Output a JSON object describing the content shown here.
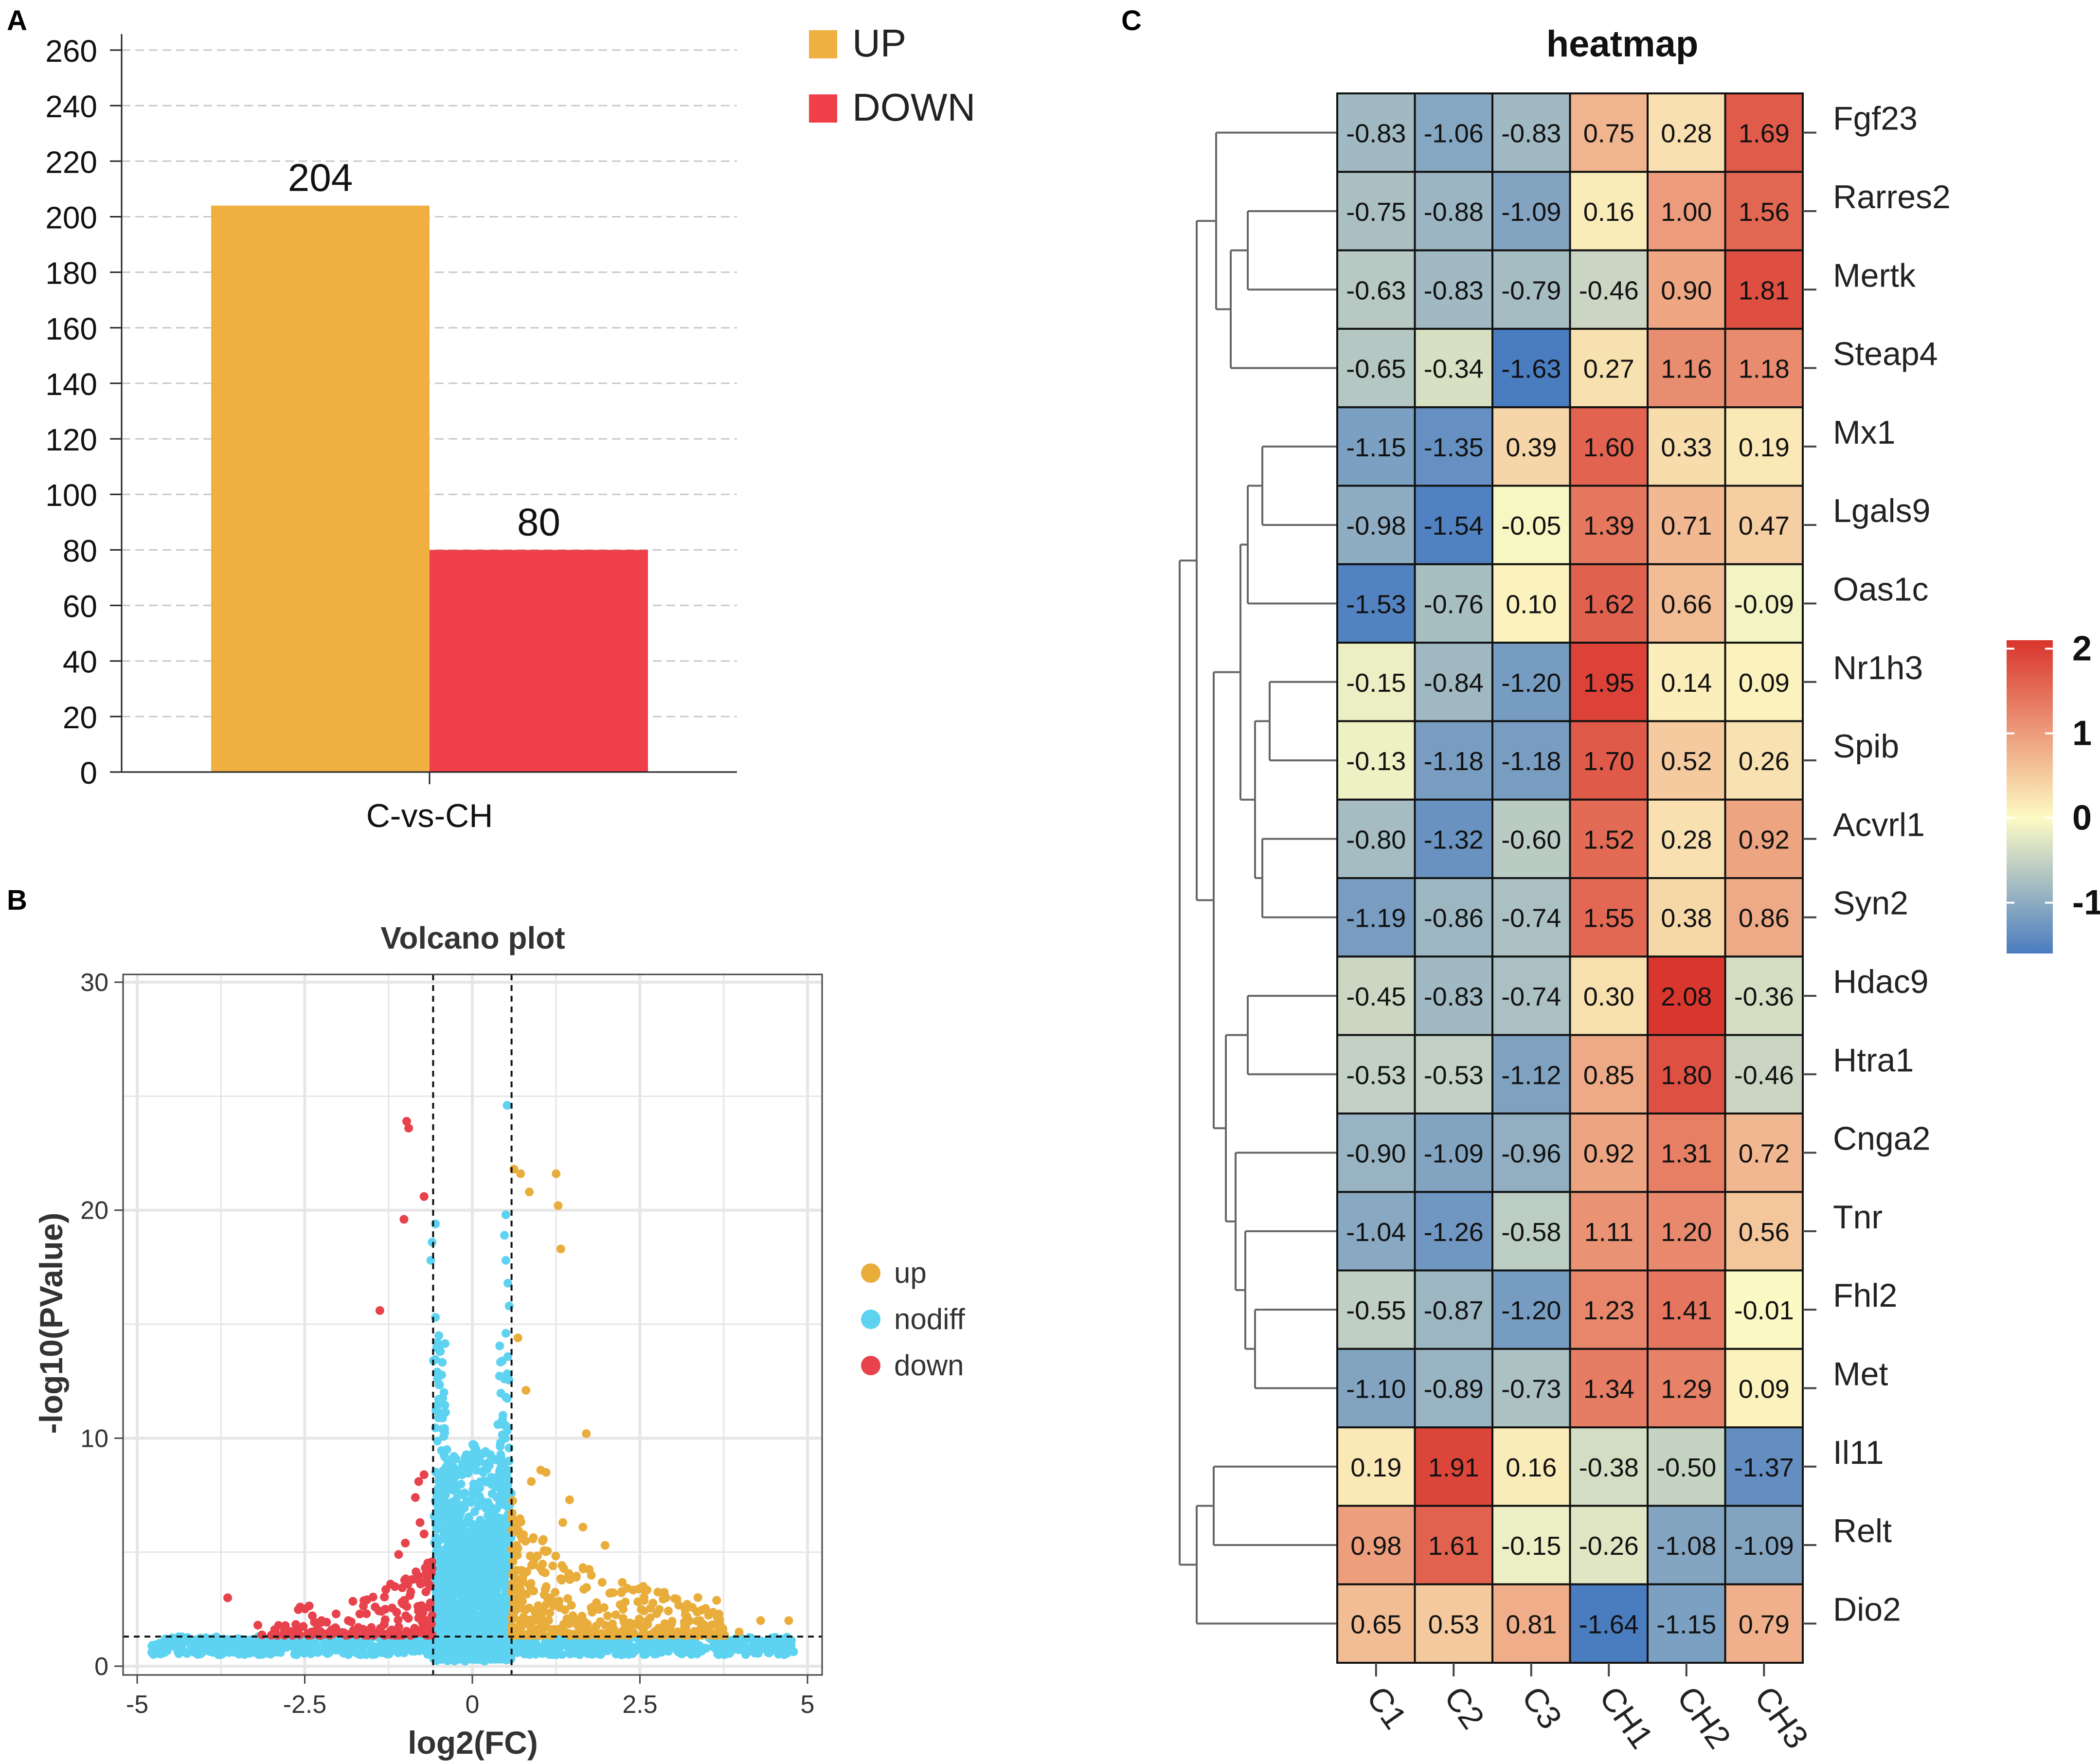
{
  "panel_labels": {
    "a": "A",
    "b": "B",
    "c": "C"
  },
  "chart_data": [
    {
      "type": "bar",
      "title": "",
      "categories": [
        "C-vs-CH"
      ],
      "series": [
        {
          "name": "UP",
          "values": [
            204
          ],
          "color": "#efb041"
        },
        {
          "name": "DOWN",
          "values": [
            80
          ],
          "color": "#ef3f49"
        }
      ],
      "value_labels": [
        "204",
        "80"
      ],
      "ylim": [
        0,
        260
      ],
      "yticks": [
        "0",
        "20",
        "40",
        "60",
        "80",
        "100",
        "120",
        "140",
        "160",
        "180",
        "200",
        "220",
        "240",
        "260"
      ],
      "xlabel": "",
      "ylabel": "",
      "grid": "horizontal dashed",
      "legend_position": "top-right"
    },
    {
      "type": "scatter",
      "title": "Volcano plot",
      "xlabel": "log2(FC)",
      "ylabel": "-log10(PValue)",
      "xlim": [
        -5,
        5
      ],
      "ylim": [
        0,
        30
      ],
      "xticks": [
        "-5",
        "-2.5",
        "0",
        "2.5",
        "5"
      ],
      "yticks": [
        "0",
        "10",
        "20",
        "30"
      ],
      "thresholds": {
        "log2fc": [
          -0.585,
          0.585
        ],
        "neglog10p": 1.3
      },
      "legend_position": "right",
      "legend": [
        {
          "name": "up",
          "color": "#e9ad3c"
        },
        {
          "name": "nodiff",
          "color": "#5ed3f1"
        },
        {
          "name": "down",
          "color": "#e8424c"
        }
      ],
      "highlight_points": {
        "up": [
          [
            0.62,
            21.8
          ],
          [
            0.72,
            21.6
          ],
          [
            0.85,
            20.8
          ],
          [
            1.25,
            21.6
          ],
          [
            1.28,
            20.2
          ],
          [
            1.32,
            18.3
          ],
          [
            0.68,
            14.4
          ],
          [
            0.8,
            12.1
          ],
          [
            1.02,
            8.6
          ],
          [
            0.88,
            8.1
          ],
          [
            1.1,
            8.5
          ],
          [
            1.7,
            10.2
          ],
          [
            1.45,
            7.3
          ],
          [
            1.35,
            6.3
          ],
          [
            1.65,
            6.1
          ],
          [
            1.98,
            5.3
          ],
          [
            2.55,
            3.5
          ],
          [
            2.25,
            2.5
          ],
          [
            2.75,
            2.3
          ],
          [
            3.4,
            2.0
          ],
          [
            3.7,
            1.8
          ],
          [
            4.3,
            2.0
          ],
          [
            4.72,
            2.0
          ],
          [
            3.98,
            1.5
          ],
          [
            1.2,
            4.4
          ],
          [
            1.55,
            3.9
          ],
          [
            2.05,
            3.2
          ],
          [
            2.35,
            1.9
          ],
          [
            2.9,
            1.6
          ],
          [
            3.15,
            1.5
          ],
          [
            1.8,
            2.6
          ]
        ],
        "down": [
          [
            -0.98,
            23.9
          ],
          [
            -0.95,
            23.6
          ],
          [
            -0.72,
            20.6
          ],
          [
            -1.02,
            19.6
          ],
          [
            -1.38,
            15.6
          ],
          [
            -0.72,
            8.4
          ],
          [
            -0.8,
            8.1
          ],
          [
            -0.85,
            7.4
          ],
          [
            -0.78,
            6.3
          ],
          [
            -1.0,
            5.4
          ],
          [
            -0.72,
            5.8
          ],
          [
            -1.1,
            4.9
          ],
          [
            -1.22,
            3.6
          ],
          [
            -1.45,
            2.6
          ],
          [
            -1.58,
            2.3
          ],
          [
            -1.85,
            2.0
          ],
          [
            -2.1,
            1.6
          ],
          [
            -3.65,
            3.0
          ],
          [
            -2.95,
            1.6
          ],
          [
            -3.2,
            1.8
          ],
          [
            -2.6,
            1.6
          ],
          [
            -2.25,
            2.0
          ],
          [
            -0.9,
            3.8
          ],
          [
            -1.05,
            2.8
          ],
          [
            -1.3,
            2.5
          ],
          [
            -1.7,
            1.7
          ],
          [
            -2.4,
            1.5
          ],
          [
            -2.8,
            1.5
          ]
        ],
        "nodiff": [
          [
            0.52,
            24.6
          ],
          [
            -0.55,
            19.4
          ],
          [
            -0.6,
            18.6
          ],
          [
            -0.62,
            17.8
          ],
          [
            0.5,
            19.8
          ],
          [
            0.48,
            18.9
          ],
          [
            0.5,
            17.8
          ],
          [
            0.53,
            16.8
          ],
          [
            0.55,
            15.8
          ],
          [
            0.5,
            14.6
          ],
          [
            -0.55,
            15.3
          ],
          [
            -0.5,
            14.5
          ],
          [
            -0.58,
            13.4
          ],
          [
            -0.52,
            12.6
          ],
          [
            -0.48,
            11.6
          ],
          [
            0.48,
            12.6
          ],
          [
            0.5,
            11.8
          ],
          [
            0.45,
            10.6
          ],
          [
            0.38,
            10.6
          ],
          [
            0.42,
            9.8
          ],
          [
            -0.45,
            10.4
          ],
          [
            -0.38,
            9.5
          ],
          [
            0.55,
            9.0
          ]
        ]
      }
    },
    {
      "type": "heatmap",
      "title": "heatmap",
      "columns": [
        "C1",
        "C2",
        "C3",
        "CH1",
        "CH2",
        "CH3"
      ],
      "rows": [
        "Fgf23",
        "Rarres2",
        "Mertk",
        "Steap4",
        "Mx1",
        "Lgals9",
        "Oas1c",
        "Nr1h3",
        "Spib",
        "Acvrl1",
        "Syn2",
        "Hdac9",
        "Htra1",
        "Cnga2",
        "Tnr",
        "Fhl2",
        "Met",
        "Il11",
        "Relt",
        "Dio2"
      ],
      "values": [
        [
          -0.83,
          -1.06,
          -0.83,
          0.75,
          0.28,
          1.69
        ],
        [
          -0.75,
          -0.88,
          -1.09,
          0.16,
          1.0,
          1.56
        ],
        [
          -0.63,
          -0.83,
          -0.79,
          -0.46,
          0.9,
          1.81
        ],
        [
          -0.65,
          -0.34,
          -1.63,
          0.27,
          1.16,
          1.18
        ],
        [
          -1.15,
          -1.35,
          0.39,
          1.6,
          0.33,
          0.19
        ],
        [
          -0.98,
          -1.54,
          -0.05,
          1.39,
          0.71,
          0.47
        ],
        [
          -1.53,
          -0.76,
          0.1,
          1.62,
          0.66,
          -0.09
        ],
        [
          -0.15,
          -0.84,
          -1.2,
          1.95,
          0.14,
          0.09
        ],
        [
          -0.13,
          -1.18,
          -1.18,
          1.7,
          0.52,
          0.26
        ],
        [
          -0.8,
          -1.32,
          -0.6,
          1.52,
          0.28,
          0.92
        ],
        [
          -1.19,
          -0.86,
          -0.74,
          1.55,
          0.38,
          0.86
        ],
        [
          -0.45,
          -0.83,
          -0.74,
          0.3,
          2.08,
          -0.36
        ],
        [
          -0.53,
          -0.53,
          -1.12,
          0.85,
          1.8,
          -0.46
        ],
        [
          -0.9,
          -1.09,
          -0.96,
          0.92,
          1.31,
          0.72
        ],
        [
          -1.04,
          -1.26,
          -0.58,
          1.11,
          1.2,
          0.56
        ],
        [
          -0.55,
          -0.87,
          -1.2,
          1.23,
          1.41,
          -0.01
        ],
        [
          -1.1,
          -0.89,
          -0.73,
          1.34,
          1.29,
          0.09
        ],
        [
          0.19,
          1.91,
          0.16,
          -0.38,
          -0.5,
          -1.37
        ],
        [
          0.98,
          1.61,
          -0.15,
          -0.26,
          -1.08,
          -1.09
        ],
        [
          0.65,
          0.53,
          0.81,
          -1.64,
          -1.15,
          0.79
        ]
      ],
      "value_labels": [
        [
          "-0.83",
          "-1.06",
          "-0.83",
          "0.75",
          "0.28",
          "1.69"
        ],
        [
          "-0.75",
          "-0.88",
          "-1.09",
          "0.16",
          "1.00",
          "1.56"
        ],
        [
          "-0.63",
          "-0.83",
          "-0.79",
          "-0.46",
          "0.90",
          "1.81"
        ],
        [
          "-0.65",
          "-0.34",
          "-1.63",
          "0.27",
          "1.16",
          "1.18"
        ],
        [
          "-1.15",
          "-1.35",
          "0.39",
          "1.60",
          "0.33",
          "0.19"
        ],
        [
          "-0.98",
          "-1.54",
          "-0.05",
          "1.39",
          "0.71",
          "0.47"
        ],
        [
          "-1.53",
          "-0.76",
          "0.10",
          "1.62",
          "0.66",
          "-0.09"
        ],
        [
          "-0.15",
          "-0.84",
          "-1.20",
          "1.95",
          "0.14",
          "0.09"
        ],
        [
          "-0.13",
          "-1.18",
          "-1.18",
          "1.70",
          "0.52",
          "0.26"
        ],
        [
          "-0.80",
          "-1.32",
          "-0.60",
          "1.52",
          "0.28",
          "0.92"
        ],
        [
          "-1.19",
          "-0.86",
          "-0.74",
          "1.55",
          "0.38",
          "0.86"
        ],
        [
          "-0.45",
          "-0.83",
          "-0.74",
          "0.30",
          "2.08",
          "-0.36"
        ],
        [
          "-0.53",
          "-0.53",
          "-1.12",
          "0.85",
          "1.80",
          "-0.46"
        ],
        [
          "-0.90",
          "-1.09",
          "-0.96",
          "0.92",
          "1.31",
          "0.72"
        ],
        [
          "-1.04",
          "-1.26",
          "-0.58",
          "1.11",
          "1.20",
          "0.56"
        ],
        [
          "-0.55",
          "-0.87",
          "-1.20",
          "1.23",
          "1.41",
          "-0.01"
        ],
        [
          "-1.10",
          "-0.89",
          "-0.73",
          "1.34",
          "1.29",
          "0.09"
        ],
        [
          "0.19",
          "1.91",
          "0.16",
          "-0.38",
          "-0.50",
          "-1.37"
        ],
        [
          "0.98",
          "1.61",
          "-0.15",
          "-0.26",
          "-1.08",
          "-1.09"
        ],
        [
          "0.65",
          "0.53",
          "0.81",
          "-1.64",
          "-1.15",
          "0.79"
        ]
      ],
      "colorbar": {
        "range": [
          -1.6,
          2.1
        ],
        "ticks": [
          "2",
          "1",
          "0",
          "-1"
        ],
        "colors": [
          "#4a7cc0",
          "#fdfbc4",
          "#d9342c"
        ]
      },
      "row_dendrogram": true
    }
  ]
}
